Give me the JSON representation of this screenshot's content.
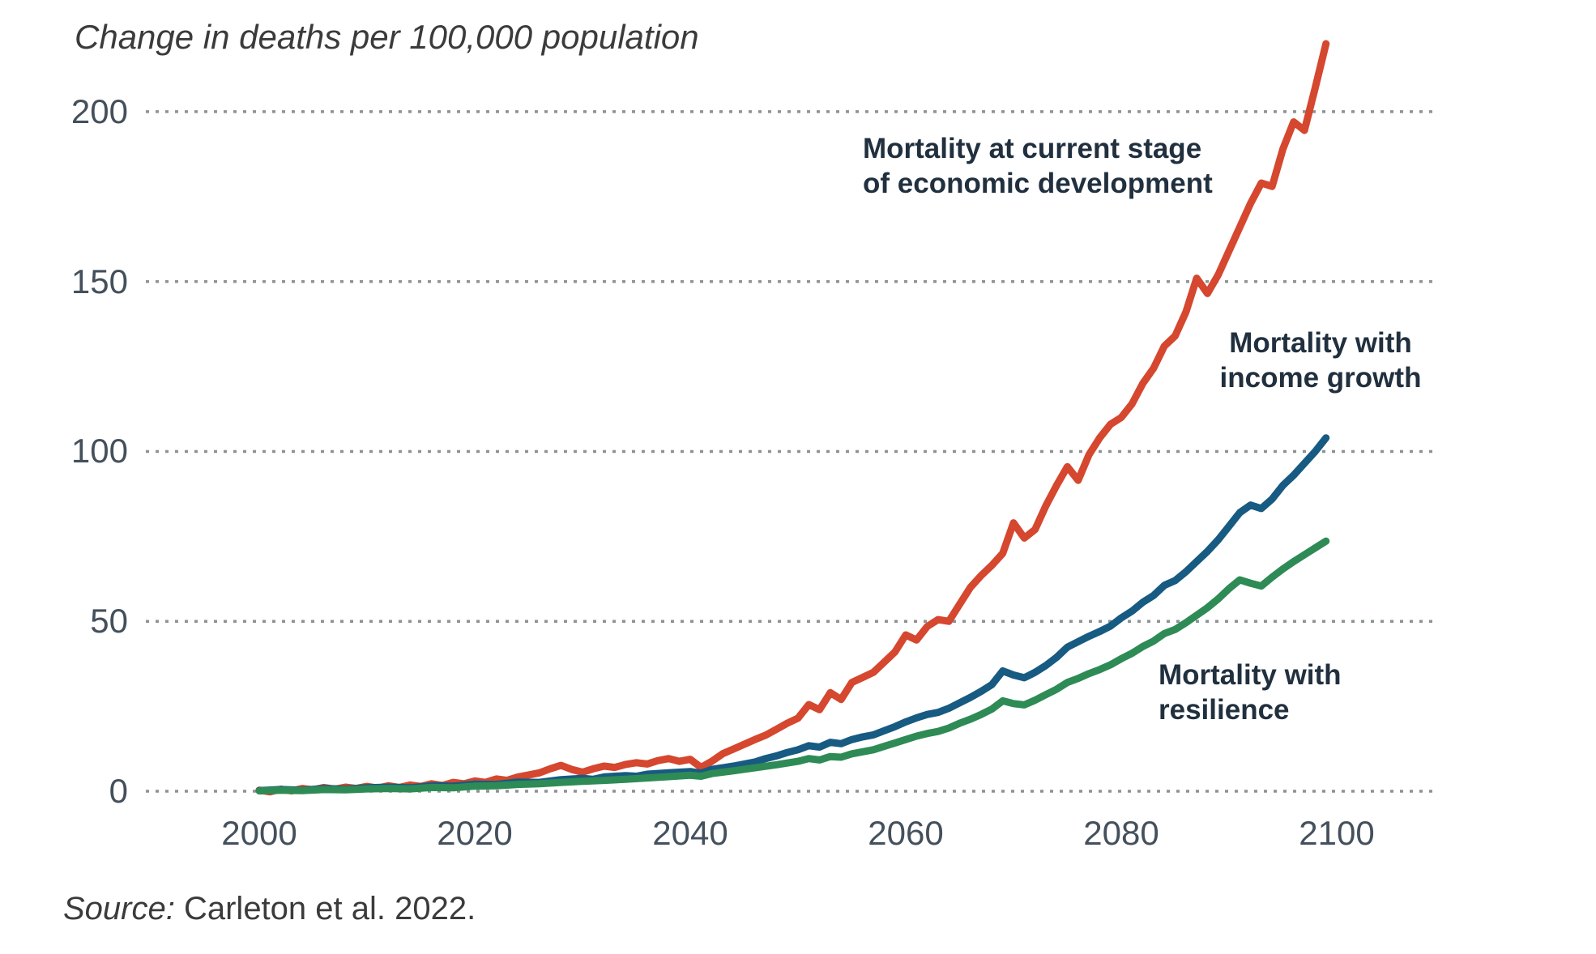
{
  "title": "Change in deaths per 100,000 population",
  "source": {
    "prefix": "Source:",
    "text": " Carleton et al. 2022."
  },
  "chart_data": {
    "type": "line",
    "title": "Change in deaths per 100,000 population",
    "xlabel": "",
    "ylabel": "Change in deaths per 100,000 population",
    "x_ticks": [
      "2000",
      "2020",
      "2040",
      "2060",
      "2080",
      "2100"
    ],
    "x_tick_years": [
      2000,
      2020,
      2040,
      2060,
      2080,
      2100
    ],
    "y_ticks": [
      "0",
      "50",
      "100",
      "150",
      "200"
    ],
    "y_tick_values": [
      0,
      50,
      100,
      150,
      200
    ],
    "xlim": [
      2000,
      2110
    ],
    "ylim": [
      0,
      215
    ],
    "grid": "horizontal dotted lines at each y tick",
    "legend_position": "inline text annotations next to lines",
    "grid_color": "#8d9296",
    "axis_label_color": "#44505c",
    "annotation_color": "#21303f",
    "series": [
      {
        "name": "Mortality at current stage of economic development",
        "color": "#d5472e",
        "points": [
          [
            2000,
            0.3
          ],
          [
            2001,
            -0.2
          ],
          [
            2002,
            0.6
          ],
          [
            2003,
            0.1
          ],
          [
            2004,
            0.8
          ],
          [
            2005,
            0.4
          ],
          [
            2006,
            1.1
          ],
          [
            2007,
            0.6
          ],
          [
            2008,
            1.2
          ],
          [
            2009,
            0.8
          ],
          [
            2010,
            1.4
          ],
          [
            2011,
            0.9
          ],
          [
            2012,
            1.6
          ],
          [
            2013,
            1.1
          ],
          [
            2014,
            1.8
          ],
          [
            2015,
            1.4
          ],
          [
            2016,
            2.2
          ],
          [
            2017,
            1.7
          ],
          [
            2018,
            2.6
          ],
          [
            2019,
            2.2
          ],
          [
            2020,
            3.0
          ],
          [
            2021,
            2.6
          ],
          [
            2022,
            3.6
          ],
          [
            2023,
            3.2
          ],
          [
            2024,
            4.2
          ],
          [
            2025,
            4.8
          ],
          [
            2026,
            5.4
          ],
          [
            2027,
            6.6
          ],
          [
            2028,
            7.6
          ],
          [
            2029,
            6.4
          ],
          [
            2030,
            5.6
          ],
          [
            2031,
            6.6
          ],
          [
            2032,
            7.4
          ],
          [
            2033,
            7.0
          ],
          [
            2034,
            7.9
          ],
          [
            2035,
            8.4
          ],
          [
            2036,
            8.0
          ],
          [
            2037,
            9.0
          ],
          [
            2038,
            9.6
          ],
          [
            2039,
            8.8
          ],
          [
            2040,
            9.4
          ],
          [
            2041,
            7.0
          ],
          [
            2042,
            8.8
          ],
          [
            2043,
            11.0
          ],
          [
            2044,
            12.4
          ],
          [
            2045,
            13.8
          ],
          [
            2046,
            15.2
          ],
          [
            2047,
            16.5
          ],
          [
            2048,
            18.2
          ],
          [
            2049,
            20.0
          ],
          [
            2050,
            21.5
          ],
          [
            2051,
            25.5
          ],
          [
            2052,
            24.0
          ],
          [
            2053,
            29.0
          ],
          [
            2054,
            27.0
          ],
          [
            2055,
            32.0
          ],
          [
            2056,
            33.5
          ],
          [
            2057,
            35.0
          ],
          [
            2058,
            38.0
          ],
          [
            2059,
            41.0
          ],
          [
            2060,
            46.0
          ],
          [
            2061,
            44.5
          ],
          [
            2062,
            48.5
          ],
          [
            2063,
            50.5
          ],
          [
            2064,
            50.0
          ],
          [
            2065,
            55.0
          ],
          [
            2066,
            60.0
          ],
          [
            2067,
            63.5
          ],
          [
            2068,
            66.5
          ],
          [
            2069,
            70.0
          ],
          [
            2070,
            79.0
          ],
          [
            2071,
            74.5
          ],
          [
            2072,
            77.0
          ],
          [
            2073,
            84.0
          ],
          [
            2074,
            90.0
          ],
          [
            2075,
            95.5
          ],
          [
            2076,
            91.5
          ],
          [
            2077,
            99.0
          ],
          [
            2078,
            104.0
          ],
          [
            2079,
            108.0
          ],
          [
            2080,
            110.0
          ],
          [
            2081,
            114.0
          ],
          [
            2082,
            120.0
          ],
          [
            2083,
            124.5
          ],
          [
            2084,
            131.0
          ],
          [
            2085,
            134.0
          ],
          [
            2086,
            141.0
          ],
          [
            2087,
            151.0
          ],
          [
            2088,
            146.5
          ],
          [
            2089,
            152.0
          ],
          [
            2090,
            159.0
          ],
          [
            2091,
            166.0
          ],
          [
            2092,
            173.0
          ],
          [
            2093,
            179.0
          ],
          [
            2094,
            178.0
          ],
          [
            2095,
            189.0
          ],
          [
            2096,
            197.0
          ],
          [
            2097,
            194.5
          ],
          [
            2098,
            207.0
          ],
          [
            2099,
            220.0
          ]
        ]
      },
      {
        "name": "Mortality with income growth",
        "color": "#175a82",
        "points": [
          [
            2000,
            0.2
          ],
          [
            2002,
            0.5
          ],
          [
            2004,
            0.3
          ],
          [
            2006,
            0.8
          ],
          [
            2008,
            0.6
          ],
          [
            2010,
            1.0
          ],
          [
            2012,
            1.2
          ],
          [
            2014,
            1.0
          ],
          [
            2016,
            1.6
          ],
          [
            2018,
            1.5
          ],
          [
            2020,
            2.1
          ],
          [
            2022,
            2.0
          ],
          [
            2024,
            2.7
          ],
          [
            2026,
            2.6
          ],
          [
            2028,
            3.4
          ],
          [
            2030,
            3.8
          ],
          [
            2031,
            3.5
          ],
          [
            2032,
            4.2
          ],
          [
            2034,
            4.6
          ],
          [
            2035,
            4.4
          ],
          [
            2036,
            5.0
          ],
          [
            2038,
            5.4
          ],
          [
            2040,
            5.8
          ],
          [
            2041,
            5.3
          ],
          [
            2042,
            6.4
          ],
          [
            2044,
            7.4
          ],
          [
            2046,
            8.6
          ],
          [
            2047,
            9.6
          ],
          [
            2048,
            10.4
          ],
          [
            2049,
            11.4
          ],
          [
            2050,
            12.2
          ],
          [
            2051,
            13.4
          ],
          [
            2052,
            13.0
          ],
          [
            2053,
            14.4
          ],
          [
            2054,
            14.0
          ],
          [
            2055,
            15.2
          ],
          [
            2056,
            16.0
          ],
          [
            2057,
            16.6
          ],
          [
            2058,
            17.8
          ],
          [
            2059,
            19.0
          ],
          [
            2060,
            20.4
          ],
          [
            2061,
            21.6
          ],
          [
            2062,
            22.6
          ],
          [
            2063,
            23.2
          ],
          [
            2064,
            24.4
          ],
          [
            2065,
            26.0
          ],
          [
            2066,
            27.6
          ],
          [
            2067,
            29.4
          ],
          [
            2068,
            31.4
          ],
          [
            2069,
            35.4
          ],
          [
            2070,
            34.2
          ],
          [
            2071,
            33.4
          ],
          [
            2072,
            35.0
          ],
          [
            2073,
            37.0
          ],
          [
            2074,
            39.4
          ],
          [
            2075,
            42.4
          ],
          [
            2076,
            44.0
          ],
          [
            2077,
            45.6
          ],
          [
            2078,
            47.0
          ],
          [
            2079,
            48.6
          ],
          [
            2080,
            51.0
          ],
          [
            2081,
            53.0
          ],
          [
            2082,
            55.6
          ],
          [
            2083,
            57.6
          ],
          [
            2084,
            60.6
          ],
          [
            2085,
            62.0
          ],
          [
            2086,
            64.6
          ],
          [
            2087,
            67.6
          ],
          [
            2088,
            70.6
          ],
          [
            2089,
            74.0
          ],
          [
            2090,
            78.0
          ],
          [
            2091,
            82.0
          ],
          [
            2092,
            84.2
          ],
          [
            2093,
            83.2
          ],
          [
            2094,
            86.0
          ],
          [
            2095,
            90.0
          ],
          [
            2096,
            93.0
          ],
          [
            2097,
            96.5
          ],
          [
            2098,
            100.0
          ],
          [
            2099,
            104.0
          ]
        ]
      },
      {
        "name": "Mortality with resilience",
        "color": "#2e8b55",
        "points": [
          [
            2000,
            0.1
          ],
          [
            2002,
            0.3
          ],
          [
            2004,
            0.2
          ],
          [
            2006,
            0.5
          ],
          [
            2008,
            0.4
          ],
          [
            2010,
            0.7
          ],
          [
            2012,
            0.8
          ],
          [
            2014,
            0.7
          ],
          [
            2016,
            1.1
          ],
          [
            2018,
            1.0
          ],
          [
            2020,
            1.5
          ],
          [
            2022,
            1.6
          ],
          [
            2024,
            2.0
          ],
          [
            2026,
            2.2
          ],
          [
            2028,
            2.6
          ],
          [
            2030,
            2.9
          ],
          [
            2032,
            3.2
          ],
          [
            2034,
            3.5
          ],
          [
            2036,
            3.9
          ],
          [
            2038,
            4.3
          ],
          [
            2040,
            4.7
          ],
          [
            2041,
            4.4
          ],
          [
            2042,
            5.2
          ],
          [
            2044,
            6.0
          ],
          [
            2046,
            6.9
          ],
          [
            2048,
            7.8
          ],
          [
            2050,
            8.8
          ],
          [
            2051,
            9.6
          ],
          [
            2052,
            9.2
          ],
          [
            2053,
            10.2
          ],
          [
            2054,
            10.0
          ],
          [
            2055,
            11.0
          ],
          [
            2056,
            11.6
          ],
          [
            2057,
            12.2
          ],
          [
            2058,
            13.2
          ],
          [
            2059,
            14.2
          ],
          [
            2060,
            15.2
          ],
          [
            2061,
            16.2
          ],
          [
            2062,
            17.0
          ],
          [
            2063,
            17.6
          ],
          [
            2064,
            18.6
          ],
          [
            2065,
            20.0
          ],
          [
            2066,
            21.2
          ],
          [
            2067,
            22.6
          ],
          [
            2068,
            24.2
          ],
          [
            2069,
            26.6
          ],
          [
            2070,
            25.8
          ],
          [
            2071,
            25.4
          ],
          [
            2072,
            26.8
          ],
          [
            2073,
            28.4
          ],
          [
            2074,
            30.0
          ],
          [
            2075,
            32.0
          ],
          [
            2076,
            33.2
          ],
          [
            2077,
            34.6
          ],
          [
            2078,
            35.8
          ],
          [
            2079,
            37.2
          ],
          [
            2080,
            39.0
          ],
          [
            2081,
            40.6
          ],
          [
            2082,
            42.6
          ],
          [
            2083,
            44.2
          ],
          [
            2084,
            46.4
          ],
          [
            2085,
            47.6
          ],
          [
            2086,
            49.6
          ],
          [
            2087,
            51.8
          ],
          [
            2088,
            54.0
          ],
          [
            2089,
            56.6
          ],
          [
            2090,
            59.6
          ],
          [
            2091,
            62.2
          ],
          [
            2092,
            61.2
          ],
          [
            2093,
            60.4
          ],
          [
            2094,
            63.0
          ],
          [
            2095,
            65.4
          ],
          [
            2096,
            67.6
          ],
          [
            2097,
            69.6
          ],
          [
            2098,
            71.6
          ],
          [
            2099,
            73.6
          ]
        ]
      }
    ],
    "annotations": [
      {
        "lines": [
          "Mortality at current stage",
          "of economic development"
        ]
      },
      {
        "lines": [
          "Mortality with",
          "income growth"
        ]
      },
      {
        "lines": [
          "Mortality with",
          "resilience"
        ]
      }
    ]
  }
}
